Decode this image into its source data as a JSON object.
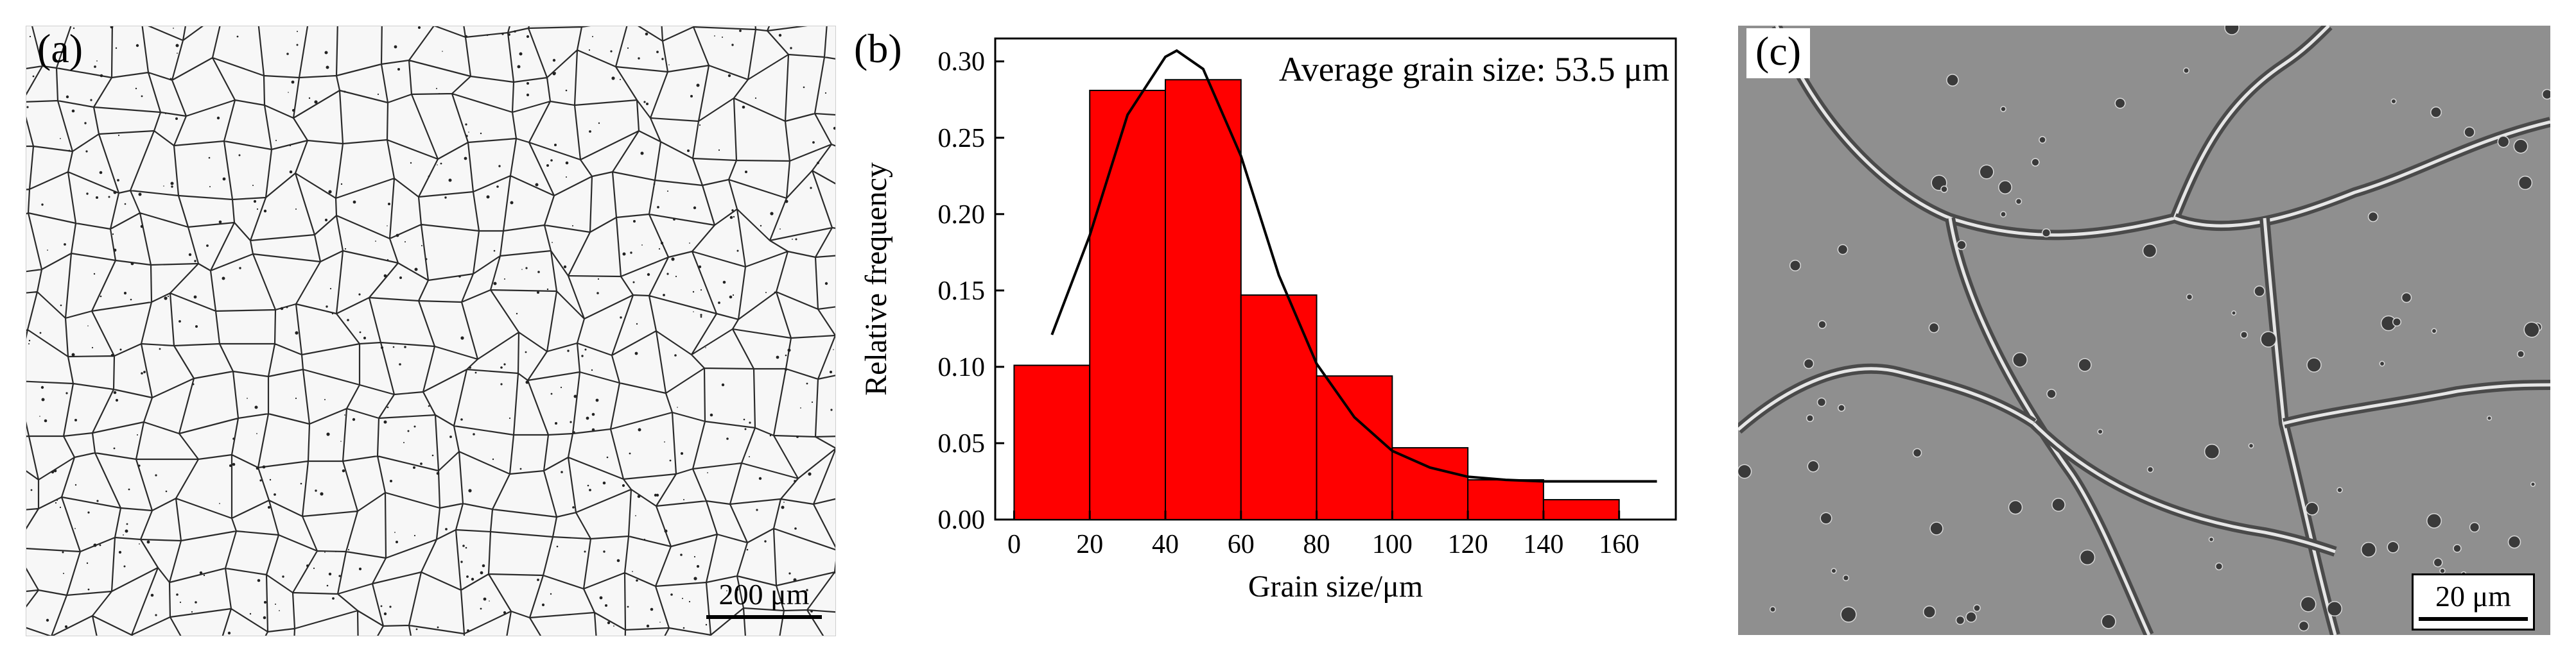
{
  "panels": {
    "a": {
      "label": "(a)",
      "scale_bar": "200 μm"
    },
    "b": {
      "label": "(b)"
    },
    "c": {
      "label": "(c)",
      "scale_bar": "20 μm"
    }
  },
  "chart_data": {
    "type": "bar",
    "title": "",
    "annotation": "Average grain size: 53.5 μm",
    "xlabel": "Grain size/μm",
    "ylabel": "Relative frequency",
    "xlim": [
      -5,
      175
    ],
    "ylim": [
      0,
      0.315
    ],
    "xticks": [
      0,
      20,
      40,
      60,
      80,
      100,
      120,
      140,
      160
    ],
    "yticks": [
      0.0,
      0.05,
      0.1,
      0.15,
      0.2,
      0.25,
      0.3
    ],
    "ytick_labels": [
      "0.00",
      "0.05",
      "0.10",
      "0.15",
      "0.20",
      "0.25",
      "0.30"
    ],
    "bins": [
      {
        "start": 0,
        "end": 20,
        "value": 0.101
      },
      {
        "start": 20,
        "end": 40,
        "value": 0.281
      },
      {
        "start": 40,
        "end": 60,
        "value": 0.288
      },
      {
        "start": 60,
        "end": 80,
        "value": 0.147
      },
      {
        "start": 80,
        "end": 100,
        "value": 0.094
      },
      {
        "start": 100,
        "end": 120,
        "value": 0.047
      },
      {
        "start": 120,
        "end": 140,
        "value": 0.026
      },
      {
        "start": 140,
        "end": 160,
        "value": 0.013
      }
    ],
    "fit_curve": {
      "type": "gaussian",
      "x": [
        10,
        20,
        30,
        40,
        43,
        50,
        60,
        70,
        80,
        90,
        100,
        110,
        120,
        130,
        140,
        150,
        160,
        170
      ],
      "y": [
        0.121,
        0.186,
        0.265,
        0.303,
        0.307,
        0.295,
        0.238,
        0.16,
        0.102,
        0.067,
        0.045,
        0.034,
        0.028,
        0.026,
        0.025,
        0.025,
        0.025,
        0.025
      ]
    },
    "colors": {
      "bar": "#ff0000",
      "bar_edge": "#000000",
      "curve": "#000000"
    }
  }
}
